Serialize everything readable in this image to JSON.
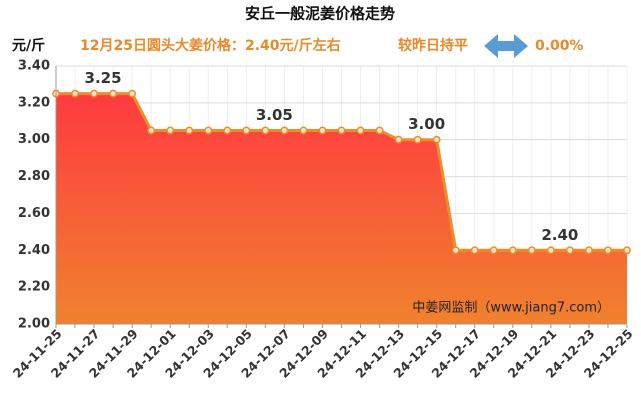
{
  "chart_data": {
    "type": "line",
    "title": "安丘一般泥姜价格走势",
    "y_label": "元/斤",
    "subtitle": "12月25日圆头大姜价格：2.40元/斤左右",
    "change_text": "较昨日持平",
    "change_value": "0.00%",
    "watermark": "中姜网监制（www.jiang7.com）",
    "categories": [
      "24-11-25",
      null,
      "24-11-27",
      null,
      "24-11-29",
      null,
      "24-12-01",
      null,
      "24-12-03",
      null,
      "24-12-05",
      null,
      "24-12-07",
      null,
      "24-12-09",
      null,
      "24-12-11",
      null,
      "24-12-13",
      null,
      "24-12-15",
      null,
      "24-12-17",
      null,
      "24-12-19",
      null,
      "24-12-21",
      null,
      "24-12-23",
      null,
      "24-12-25"
    ],
    "values": [
      3.25,
      3.25,
      3.25,
      3.25,
      3.25,
      3.05,
      3.05,
      3.05,
      3.05,
      3.05,
      3.05,
      3.05,
      3.05,
      3.05,
      3.05,
      3.05,
      3.05,
      3.05,
      3.0,
      3.0,
      3.0,
      2.4,
      2.4,
      2.4,
      2.4,
      2.4,
      2.4,
      2.4,
      2.4,
      2.4,
      2.4
    ],
    "value_labels": [
      null,
      null,
      "3.25",
      null,
      null,
      null,
      null,
      null,
      null,
      null,
      null,
      "3.05",
      null,
      null,
      null,
      null,
      null,
      null,
      null,
      "3.00",
      null,
      null,
      null,
      null,
      null,
      null,
      "2.40",
      null,
      null,
      null,
      null
    ],
    "color": "#f08c28",
    "ylim": [
      2,
      3.4
    ],
    "yticks": [
      {
        "value": 2,
        "label": "2.00"
      },
      {
        "value": 2.2,
        "label": "2.20"
      },
      {
        "value": 2.4,
        "label": "2.40"
      },
      {
        "value": 2.6,
        "label": "2.60"
      },
      {
        "value": 2.8,
        "label": "2.80"
      },
      {
        "value": 3,
        "label": "3.00"
      },
      {
        "value": 3.2,
        "label": "3.20"
      },
      {
        "value": 3.4,
        "label": "3.40"
      }
    ],
    "grid": true
  }
}
